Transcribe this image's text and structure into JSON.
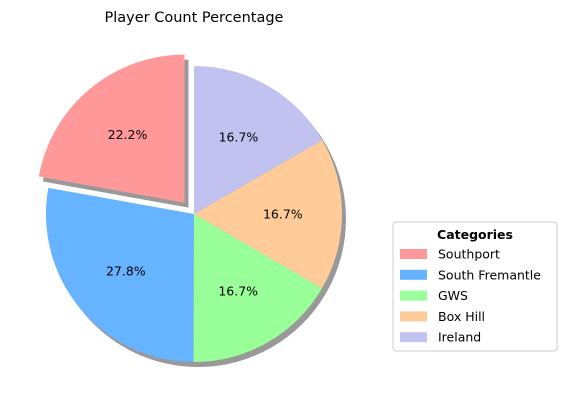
{
  "chart_data": {
    "type": "pie",
    "title": "Player Count Percentage",
    "categories": [
      "Southport",
      "South Fremantle",
      "GWS",
      "Box Hill",
      "Ireland"
    ],
    "values": [
      22.2,
      27.8,
      16.7,
      16.7,
      16.7
    ],
    "labels": [
      "22.2%",
      "27.8%",
      "16.7%",
      "16.7%",
      "16.7%"
    ],
    "colors": [
      "#ff9999",
      "#66b3ff",
      "#99ff99",
      "#ffcc99",
      "#c2c2f0"
    ],
    "explode": [
      0.1,
      0,
      0,
      0,
      0
    ],
    "start_angle_deg": 90,
    "shadow": true,
    "legend": {
      "title": "Categories",
      "placement": "center-right"
    }
  }
}
